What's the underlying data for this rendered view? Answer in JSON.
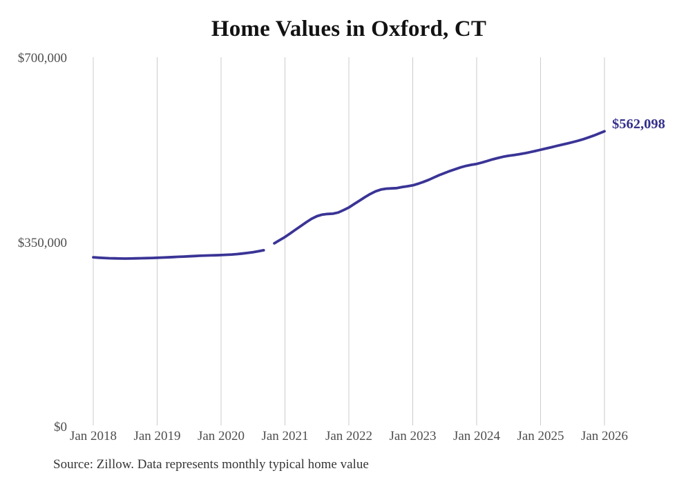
{
  "chart_data": {
    "type": "line",
    "title": "Home Values in Oxford, CT",
    "xlabel": "",
    "ylabel": "",
    "ylim": [
      0,
      700000
    ],
    "xlim": [
      "2018-01",
      "2026-01"
    ],
    "grid": "vertical-only",
    "legend": "none",
    "line_color": "#3a3496",
    "gridline_color": "#cbcbcb",
    "annotation": {
      "text": "$562,098",
      "at": "2026-01",
      "value": 562098,
      "color": "#34308c"
    },
    "source": "Source: Zillow. Data represents monthly typical home value",
    "yticks": [
      {
        "label": "$700,000",
        "value": 700000
      },
      {
        "label": "$350,000",
        "value": 350000
      },
      {
        "label": "$0",
        "value": 0
      }
    ],
    "xticks": [
      {
        "label": "Jan 2018",
        "date": "2018-01"
      },
      {
        "label": "Jan 2019",
        "date": "2019-01"
      },
      {
        "label": "Jan 2020",
        "date": "2020-01"
      },
      {
        "label": "Jan 2021",
        "date": "2021-01"
      },
      {
        "label": "Jan 2022",
        "date": "2022-01"
      },
      {
        "label": "Jan 2023",
        "date": "2023-01"
      },
      {
        "label": "Jan 2024",
        "date": "2024-01"
      },
      {
        "label": "Jan 2025",
        "date": "2025-01"
      },
      {
        "label": "Jan 2026",
        "date": "2026-01"
      }
    ],
    "series": [
      {
        "name": "Typical home value (before data gap)",
        "points": [
          [
            "2018-01",
            323000
          ],
          [
            "2018-02",
            322300
          ],
          [
            "2018-03",
            321700
          ],
          [
            "2018-04",
            321200
          ],
          [
            "2018-05",
            320900
          ],
          [
            "2018-06",
            320700
          ],
          [
            "2018-07",
            320600
          ],
          [
            "2018-08",
            320700
          ],
          [
            "2018-09",
            320900
          ],
          [
            "2018-10",
            321200
          ],
          [
            "2018-11",
            321500
          ],
          [
            "2018-12",
            321800
          ],
          [
            "2019-01",
            322100
          ],
          [
            "2019-02",
            322500
          ],
          [
            "2019-03",
            322900
          ],
          [
            "2019-04",
            323400
          ],
          [
            "2019-05",
            323900
          ],
          [
            "2019-06",
            324400
          ],
          [
            "2019-07",
            324900
          ],
          [
            "2019-08",
            325400
          ],
          [
            "2019-09",
            325900
          ],
          [
            "2019-10",
            326300
          ],
          [
            "2019-11",
            326600
          ],
          [
            "2019-12",
            326900
          ],
          [
            "2020-01",
            327200
          ],
          [
            "2020-02",
            327700
          ],
          [
            "2020-03",
            328300
          ],
          [
            "2020-04",
            329100
          ],
          [
            "2020-05",
            330100
          ],
          [
            "2020-06",
            331300
          ],
          [
            "2020-07",
            332700
          ],
          [
            "2020-08",
            334400
          ],
          [
            "2020-09",
            336400
          ]
        ]
      },
      {
        "name": "Typical home value (after data gap)",
        "points": [
          [
            "2020-11",
            349500
          ],
          [
            "2020-12",
            355500
          ],
          [
            "2021-01",
            361500
          ],
          [
            "2021-02",
            368500
          ],
          [
            "2021-03",
            375500
          ],
          [
            "2021-04",
            382500
          ],
          [
            "2021-05",
            389500
          ],
          [
            "2021-06",
            396000
          ],
          [
            "2021-07",
            401000
          ],
          [
            "2021-08",
            404000
          ],
          [
            "2021-09",
            405200
          ],
          [
            "2021-10",
            405800
          ],
          [
            "2021-11",
            408000
          ],
          [
            "2021-12",
            412500
          ],
          [
            "2022-01",
            417500
          ],
          [
            "2022-02",
            424000
          ],
          [
            "2022-03",
            430500
          ],
          [
            "2022-04",
            437000
          ],
          [
            "2022-05",
            443000
          ],
          [
            "2022-06",
            448000
          ],
          [
            "2022-07",
            451500
          ],
          [
            "2022-08",
            453200
          ],
          [
            "2022-09",
            453800
          ],
          [
            "2022-10",
            454300
          ],
          [
            "2022-11",
            456200
          ],
          [
            "2022-12",
            457800
          ],
          [
            "2023-01",
            459500
          ],
          [
            "2023-02",
            462500
          ],
          [
            "2023-03",
            466000
          ],
          [
            "2023-04",
            470000
          ],
          [
            "2023-05",
            474500
          ],
          [
            "2023-06",
            479000
          ],
          [
            "2023-07",
            483000
          ],
          [
            "2023-08",
            486800
          ],
          [
            "2023-09",
            490300
          ],
          [
            "2023-10",
            493600
          ],
          [
            "2023-11",
            496400
          ],
          [
            "2023-12",
            498500
          ],
          [
            "2024-01",
            500200
          ],
          [
            "2024-02",
            502800
          ],
          [
            "2024-03",
            505800
          ],
          [
            "2024-04",
            508800
          ],
          [
            "2024-05",
            511500
          ],
          [
            "2024-06",
            513800
          ],
          [
            "2024-07",
            515600
          ],
          [
            "2024-08",
            517000
          ],
          [
            "2024-09",
            518600
          ],
          [
            "2024-10",
            520400
          ],
          [
            "2024-11",
            522500
          ],
          [
            "2024-12",
            524700
          ],
          [
            "2025-01",
            527000
          ],
          [
            "2025-02",
            529400
          ],
          [
            "2025-03",
            531800
          ],
          [
            "2025-04",
            534200
          ],
          [
            "2025-05",
            536600
          ],
          [
            "2025-06",
            539000
          ],
          [
            "2025-07",
            541400
          ],
          [
            "2025-08",
            544000
          ],
          [
            "2025-09",
            547000
          ],
          [
            "2025-10",
            550400
          ],
          [
            "2025-11",
            554000
          ],
          [
            "2025-12",
            558000
          ],
          [
            "2026-01",
            562098
          ]
        ]
      }
    ]
  }
}
